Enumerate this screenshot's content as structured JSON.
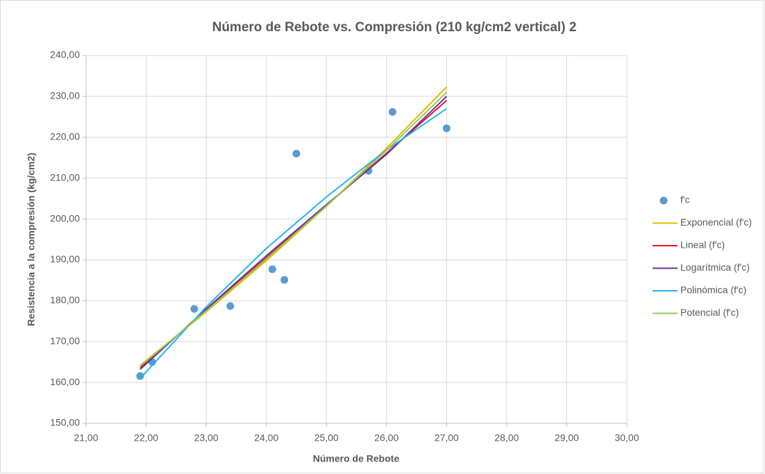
{
  "chart_data": {
    "type": "scatter",
    "title": "Número de Rebote vs. Compresión (210 kg/cm2 vertical) 2",
    "x_label": "Número de Rebote",
    "y_label": "Resistencia a la compresión (kg/cm2)",
    "xlim": [
      21,
      30
    ],
    "ylim": [
      150,
      240
    ],
    "xticks": [
      {
        "value": 21,
        "label": "21,00"
      },
      {
        "value": 22,
        "label": "22,00"
      },
      {
        "value": 23,
        "label": "23,00"
      },
      {
        "value": 24,
        "label": "24,00"
      },
      {
        "value": 25,
        "label": "25,00"
      },
      {
        "value": 26,
        "label": "26,00"
      },
      {
        "value": 27,
        "label": "27,00"
      },
      {
        "value": 28,
        "label": "28,00"
      },
      {
        "value": 29,
        "label": "29,00"
      },
      {
        "value": 30,
        "label": "30,00"
      }
    ],
    "yticks": [
      {
        "value": 150,
        "label": "150,00"
      },
      {
        "value": 160,
        "label": "160,00"
      },
      {
        "value": 170,
        "label": "170,00"
      },
      {
        "value": 180,
        "label": "180,00"
      },
      {
        "value": 190,
        "label": "190,00"
      },
      {
        "value": 200,
        "label": "200,00"
      },
      {
        "value": 210,
        "label": "210,00"
      },
      {
        "value": 220,
        "label": "220,00"
      },
      {
        "value": 230,
        "label": "230,00"
      },
      {
        "value": 240,
        "label": "240,00"
      }
    ],
    "grid": true,
    "legend": "right",
    "series": [
      {
        "name": "f'c",
        "color": "#5b9bd5",
        "mode": "markers",
        "x": [
          21.9,
          22.1,
          22.8,
          23.4,
          24.1,
          24.3,
          24.5,
          25.7,
          26.1,
          27.0
        ],
        "values": [
          161.6,
          165.0,
          178.0,
          178.7,
          187.7,
          185.1,
          216.0,
          211.8,
          226.2,
          222.2
        ]
      },
      {
        "name": "Exponencial (f'c)",
        "color": "#e6b800",
        "mode": "lines",
        "x": [
          21.9,
          23,
          24,
          25,
          26,
          27
        ],
        "values": [
          164.2,
          177.3,
          189.8,
          203.1,
          217.3,
          232.3
        ]
      },
      {
        "name": "Lineal (f'c)",
        "color": "#e8141a",
        "mode": "lines",
        "x": [
          21.9,
          23,
          24,
          25,
          26,
          27
        ],
        "values": [
          163.6,
          177.7,
          190.5,
          203.3,
          216.1,
          229.0
        ]
      },
      {
        "name": "Logarítmica (f'c)",
        "color": "#7030a0",
        "mode": "lines",
        "x": [
          21.9,
          23,
          24,
          25,
          26,
          27
        ],
        "values": [
          163.2,
          178.0,
          191.0,
          203.5,
          215.8,
          230.0
        ]
      },
      {
        "name": "Polinómica (f'c)",
        "color": "#1eb4ef",
        "mode": "lines",
        "x": [
          21.9,
          23,
          24,
          25,
          26,
          27
        ],
        "values": [
          161.0,
          178.5,
          192.8,
          205.4,
          216.9,
          227.0
        ]
      },
      {
        "name": "Potencial (f'c)",
        "color": "#92d050",
        "mode": "lines",
        "x": [
          21.9,
          23,
          24,
          25,
          26,
          27
        ],
        "values": [
          164.0,
          177.5,
          190.2,
          203.2,
          216.8,
          231.0
        ]
      }
    ]
  }
}
